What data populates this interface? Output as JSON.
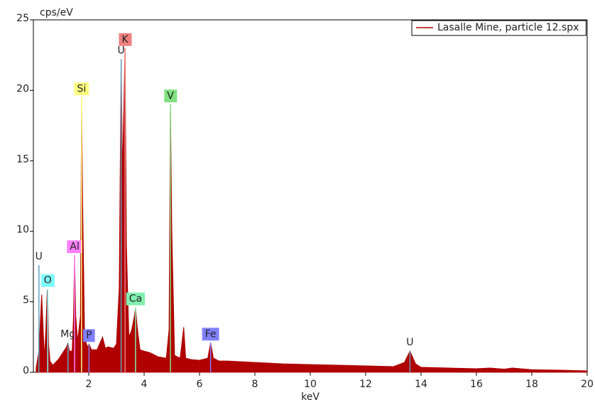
{
  "chart_data": {
    "type": "area",
    "y_label": "cps/eV",
    "x_label": "keV",
    "xlim": [
      0,
      20
    ],
    "xticks": [
      2,
      4,
      6,
      8,
      10,
      12,
      14,
      16,
      18,
      20
    ],
    "ylim": [
      0,
      25
    ],
    "yticks": [
      0,
      5,
      10,
      15,
      20,
      25
    ],
    "legend": "top-right",
    "x": [
      0.1,
      0.2,
      0.3,
      0.4,
      0.45,
      0.5,
      0.52,
      0.55,
      0.6,
      0.7,
      0.8,
      0.9,
      1.0,
      1.1,
      1.2,
      1.25,
      1.3,
      1.4,
      1.45,
      1.49,
      1.53,
      1.6,
      1.7,
      1.74,
      1.78,
      1.85,
      1.95,
      2.01,
      2.1,
      2.3,
      2.5,
      2.6,
      2.7,
      2.9,
      3.0,
      3.1,
      3.17,
      3.22,
      3.27,
      3.31,
      3.36,
      3.45,
      3.55,
      3.65,
      3.69,
      3.75,
      3.85,
      4.0,
      4.2,
      4.5,
      4.8,
      4.9,
      4.95,
      5.0,
      5.1,
      5.3,
      5.43,
      5.5,
      5.7,
      6.0,
      6.3,
      6.4,
      6.5,
      6.7,
      7,
      8,
      9,
      10,
      11,
      12,
      13,
      13.4,
      13.6,
      13.8,
      14,
      15,
      16,
      16.5,
      17,
      17.3,
      18,
      19,
      20
    ],
    "series": [
      {
        "name": "Lasalle Mine, particle 12.spx",
        "color": "#b00000",
        "values": [
          0.3,
          1.5,
          5.5,
          1.0,
          3,
          5.8,
          5.9,
          2,
          0.8,
          0.5,
          0.7,
          0.9,
          1.2,
          1.5,
          1.8,
          2.1,
          1.5,
          1.5,
          4,
          8.3,
          4,
          2.2,
          4,
          19.5,
          12,
          2.5,
          1.8,
          2.0,
          1.6,
          1.6,
          2.5,
          1.7,
          1.8,
          1.7,
          2,
          6,
          22.2,
          14,
          19,
          23,
          9,
          2.5,
          3,
          4,
          4.6,
          3.2,
          1.6,
          1.5,
          1.4,
          1.1,
          1.0,
          3,
          19,
          10,
          1.2,
          1.0,
          3.2,
          1.0,
          0.9,
          0.85,
          1.0,
          2.1,
          1.0,
          0.8,
          0.8,
          0.7,
          0.6,
          0.55,
          0.5,
          0.45,
          0.4,
          0.7,
          1.5,
          0.6,
          0.35,
          0.3,
          0.25,
          0.3,
          0.22,
          0.3,
          0.18,
          0.15,
          0.1
        ]
      }
    ],
    "annotations": [
      {
        "text": "U",
        "x": 0.2,
        "y": 7.6
      },
      {
        "text": "O",
        "x": 0.52,
        "y": 5.9,
        "color": "#80ffff"
      },
      {
        "text": "Mg",
        "x": 1.25,
        "y": 2.1
      },
      {
        "text": "Al",
        "x": 1.49,
        "y": 8.3,
        "color": "#ff80ff"
      },
      {
        "text": "Si",
        "x": 1.74,
        "y": 19.5,
        "color": "#ffff80"
      },
      {
        "text": "P",
        "x": 2.01,
        "y": 2.0,
        "color": "#8080ff"
      },
      {
        "text": "U",
        "x": 3.17,
        "y": 22.2
      },
      {
        "text": "K",
        "x": 3.31,
        "y": 23,
        "color": "#f08080"
      },
      {
        "text": "Ca",
        "x": 3.69,
        "y": 4.6,
        "color": "#80f0b0"
      },
      {
        "text": "V",
        "x": 4.95,
        "y": 19,
        "color": "#80e080"
      },
      {
        "text": "Fe",
        "x": 6.4,
        "y": 2.1,
        "color": "#8080ff"
      },
      {
        "text": "U",
        "x": 13.6,
        "y": 1.5
      }
    ]
  }
}
